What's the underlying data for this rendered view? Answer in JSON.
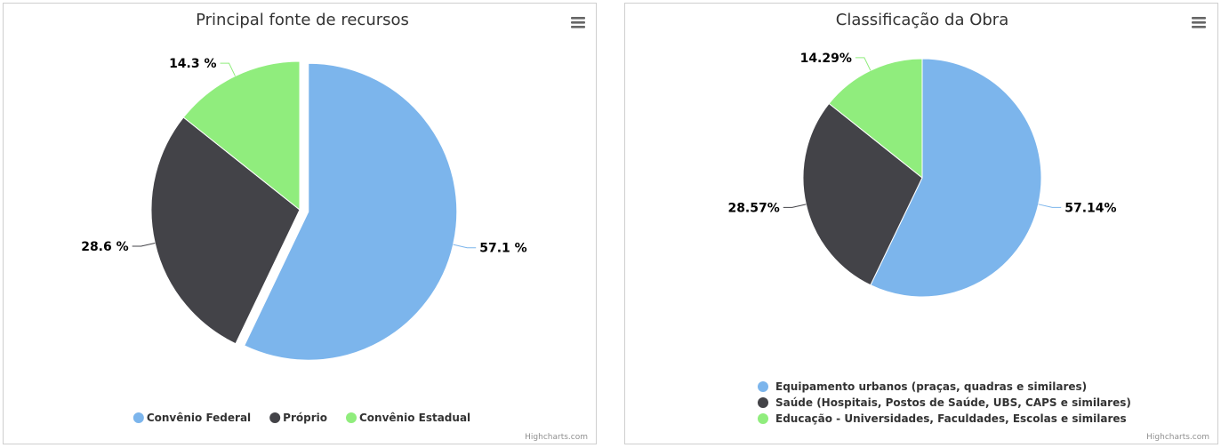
{
  "credits": "Highcharts.com",
  "colors": {
    "blue": "#7cb5ec",
    "dark": "#434348",
    "green": "#90ed7d"
  },
  "chart_data": [
    {
      "type": "pie",
      "title": "Principal fonte de recursos",
      "legend_placement": "bottom",
      "legend_layout": "horizontal",
      "slices": [
        {
          "name": "Convênio Federal",
          "value": 57.1,
          "label": "57.1 %",
          "color": "#7cb5ec",
          "sliced": true
        },
        {
          "name": "Próprio",
          "value": 28.6,
          "label": "28.6 %",
          "color": "#434348",
          "sliced": false
        },
        {
          "name": "Convênio Estadual",
          "value": 14.3,
          "label": "14.3 %",
          "color": "#90ed7d",
          "sliced": false
        }
      ]
    },
    {
      "type": "pie",
      "title": "Classificação da Obra",
      "legend_placement": "bottom",
      "legend_layout": "vertical",
      "slices": [
        {
          "name": "Equipamento urbanos (praças, quadras e similares)",
          "value": 57.14,
          "label": "57.14%",
          "color": "#7cb5ec",
          "sliced": false
        },
        {
          "name": "Saúde (Hospitais, Postos de Saúde, UBS, CAPS e similares)",
          "value": 28.57,
          "label": "28.57%",
          "color": "#434348",
          "sliced": false
        },
        {
          "name": "Educação - Universidades, Faculdades, Escolas e similares",
          "value": 14.29,
          "label": "14.29%",
          "color": "#90ed7d",
          "sliced": false
        }
      ]
    }
  ]
}
